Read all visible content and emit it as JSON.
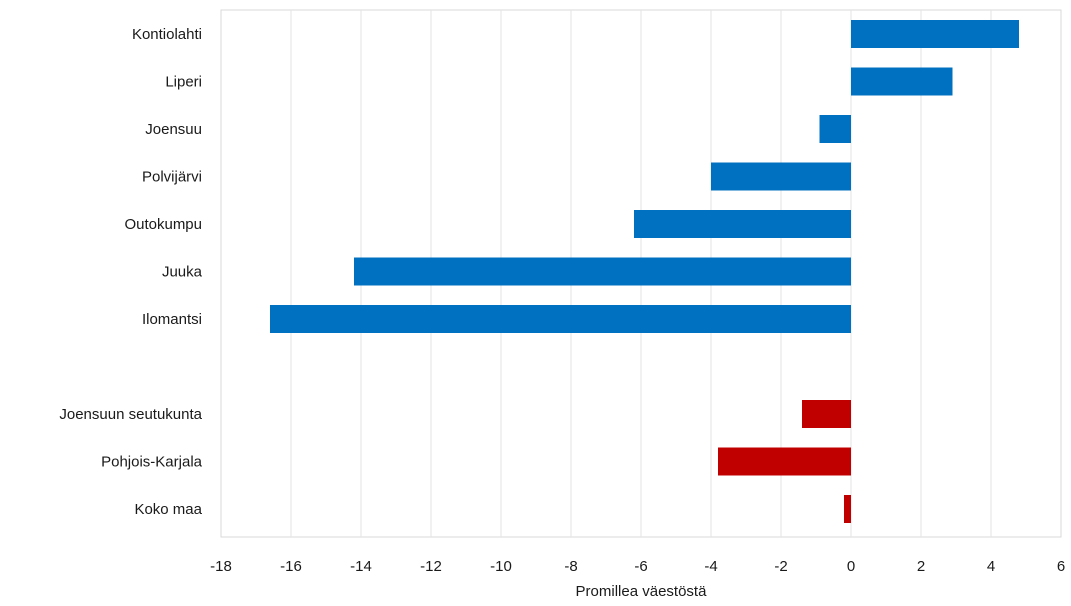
{
  "chart_data": {
    "type": "bar",
    "orientation": "horizontal",
    "categories": [
      "Kontiolahti",
      "Liperi",
      "Joensuu",
      "Polvijärvi",
      "Outokumpu",
      "Juuka",
      "Ilomantsi",
      "",
      "Joensuun seutukunta",
      "Pohjois-Karjala",
      "Koko maa"
    ],
    "values": [
      4.8,
      2.9,
      -0.9,
      -4.0,
      -6.2,
      -14.2,
      -16.6,
      null,
      -1.4,
      -3.8,
      -0.2
    ],
    "colors": [
      "#0070c0",
      "#0070c0",
      "#0070c0",
      "#0070c0",
      "#0070c0",
      "#0070c0",
      "#0070c0",
      null,
      "#c00000",
      "#c00000",
      "#c00000"
    ],
    "title": "",
    "xlabel": "Promillea väestöstä",
    "ylabel": "",
    "xlim": [
      -18,
      6
    ],
    "xticks": [
      -18,
      -16,
      -14,
      -12,
      -10,
      -8,
      -6,
      -4,
      -2,
      0,
      2,
      4,
      6
    ],
    "xtick_labels": [
      "-18",
      "-16",
      "-14",
      "-12",
      "-10",
      "-8",
      "-6",
      "-4",
      "-2",
      "0",
      "2",
      "4",
      "6"
    ],
    "grid": true,
    "legend": false
  }
}
